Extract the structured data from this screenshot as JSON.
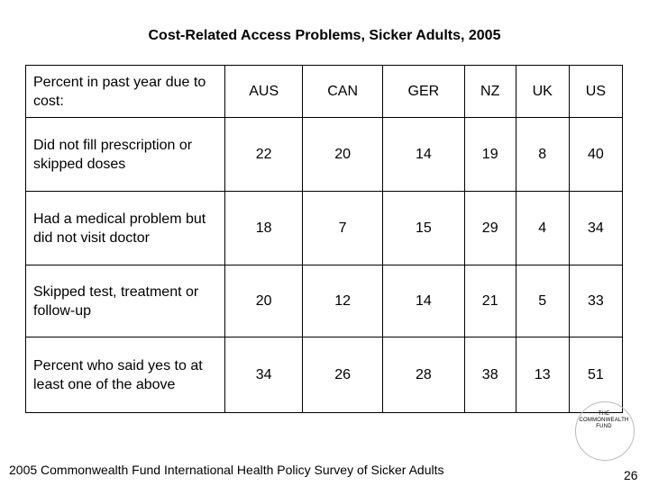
{
  "title": "Cost-Related Access Problems, Sicker Adults, 2005",
  "table": {
    "header_label": "Percent in past year due to cost:",
    "columns": [
      "AUS",
      "CAN",
      "GER",
      "NZ",
      "UK",
      "US"
    ],
    "rows": [
      {
        "label": "Did not fill prescription or skipped doses",
        "values": [
          "22",
          "20",
          "14",
          "19",
          "8",
          "40"
        ]
      },
      {
        "label": "Had a medical problem but did not visit doctor",
        "values": [
          "18",
          "7",
          "15",
          "29",
          "4",
          "34"
        ]
      },
      {
        "label": "Skipped test, treatment or follow-up",
        "values": [
          "20",
          "12",
          "14",
          "21",
          "5",
          "33"
        ]
      },
      {
        "label": "Percent who said yes to at least one of the above",
        "values": [
          "34",
          "26",
          "28",
          "38",
          "13",
          "51"
        ]
      }
    ]
  },
  "logo": {
    "line1": "THE",
    "line2": "COMMONWEALTH",
    "line3": "FUND"
  },
  "source": "2005 Commonwealth Fund International Health Policy Survey of Sicker Adults",
  "page_number": "26"
}
